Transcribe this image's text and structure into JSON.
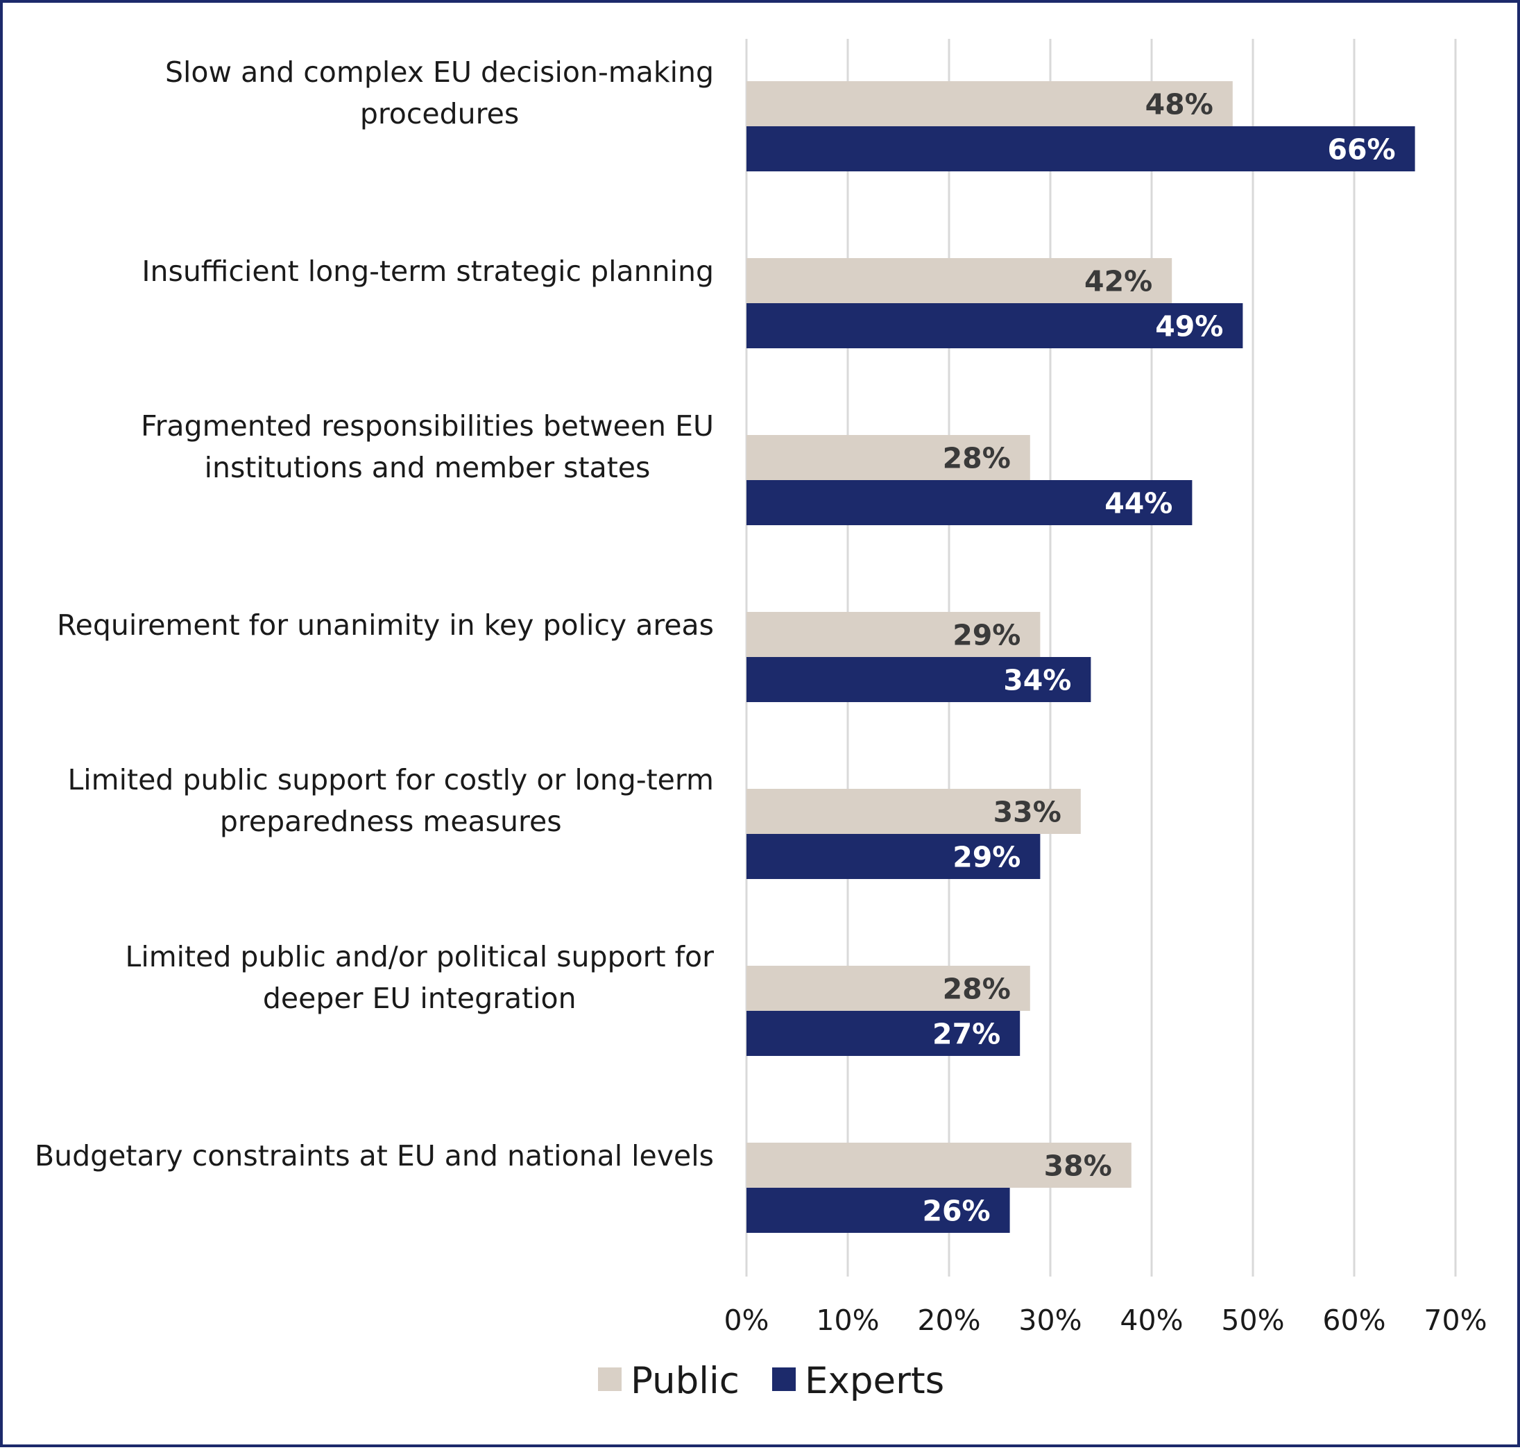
{
  "chart_data": {
    "type": "bar",
    "orientation": "horizontal",
    "title": "",
    "xlabel": "",
    "ylabel": "",
    "xlim": [
      0,
      70
    ],
    "grid": true,
    "legend_position": "bottom",
    "categories": [
      [
        "Slow and complex EU decision-making",
        "procedures"
      ],
      [
        "Insufficient long-term strategic planning"
      ],
      [
        "Fragmented responsibilities between EU",
        "institutions and member states"
      ],
      [
        "Requirement for unanimity in key policy areas"
      ],
      [
        "Limited public support for costly or long-term",
        "preparedness measures"
      ],
      [
        "Limited public and/or political support for",
        "deeper EU integration"
      ],
      [
        "Budgetary constraints at EU and national levels"
      ]
    ],
    "ticks": [
      "0%",
      "10%",
      "20%",
      "30%",
      "40%",
      "50%",
      "60%",
      "70%"
    ],
    "series": [
      {
        "name": "Public",
        "color": "#d9d0c6",
        "label_color": "#3a3a3a",
        "values": [
          48,
          42,
          28,
          29,
          33,
          28,
          38
        ],
        "labels": [
          "48%",
          "42%",
          "28%",
          "29%",
          "33%",
          "28%",
          "38%"
        ]
      },
      {
        "name": "Experts",
        "color": "#1c2a6b",
        "label_color": "#ffffff",
        "values": [
          66,
          49,
          44,
          34,
          29,
          27,
          26
        ],
        "labels": [
          "66%",
          "49%",
          "44%",
          "34%",
          "29%",
          "27%",
          "26%"
        ]
      }
    ]
  }
}
